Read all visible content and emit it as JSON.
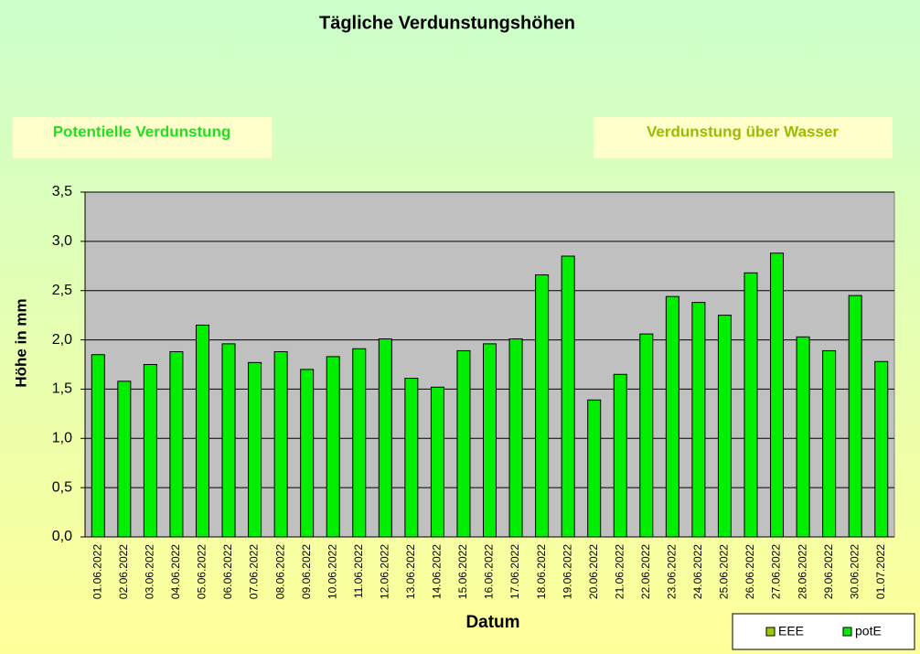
{
  "chart_data": {
    "type": "bar",
    "title": "Tägliche Verdunstungshöhen",
    "annotations": [
      "Potentielle Verdunstung",
      "Verdunstung über Wasser"
    ],
    "y_label": "Höhe in mm",
    "x_label": "Datum",
    "categories": [
      "01.06.2022",
      "02.06.2022",
      "03.06.2022",
      "04.06.2022",
      "05.06.2022",
      "06.06.2022",
      "07.06.2022",
      "08.06.2022",
      "09.06.2022",
      "10.06.2022",
      "11.06.2022",
      "12.06.2022",
      "13.06.2022",
      "14.06.2022",
      "15.06.2022",
      "16.06.2022",
      "17.06.2022",
      "18.06.2022",
      "19.06.2022",
      "20.06.2022",
      "21.06.2022",
      "22.06.2022",
      "23.06.2022",
      "24.06.2022",
      "25.06.2022",
      "26.06.2022",
      "27.06.2022",
      "28.06.2022",
      "29.06.2022",
      "30.06.2022",
      "01.07.2022"
    ],
    "series": [
      {
        "name": "potE",
        "color": "#00ee00",
        "values": [
          1.85,
          1.58,
          1.75,
          1.88,
          2.15,
          1.96,
          1.77,
          1.88,
          1.7,
          1.83,
          1.91,
          2.01,
          1.61,
          1.52,
          1.89,
          1.96,
          2.01,
          2.66,
          2.85,
          1.39,
          1.65,
          2.06,
          2.44,
          2.38,
          2.25,
          2.68,
          2.88,
          2.03,
          1.89,
          2.45,
          1.78
        ]
      }
    ],
    "legend": [
      {
        "name": "EEE",
        "color": "#99cc00"
      },
      {
        "name": "potE",
        "color": "#00ee00"
      }
    ],
    "ylim": [
      0,
      3.5
    ],
    "yticks": [
      {
        "value": 0,
        "label": "0,0"
      },
      {
        "value": 0.5,
        "label": "0,5"
      },
      {
        "value": 1,
        "label": "1,0"
      },
      {
        "value": 1.5,
        "label": "1,5"
      },
      {
        "value": 2,
        "label": "2,0"
      },
      {
        "value": 2.5,
        "label": "2,5"
      },
      {
        "value": 3,
        "label": "3,0"
      },
      {
        "value": 3.5,
        "label": "3,5"
      }
    ],
    "grid": true
  }
}
